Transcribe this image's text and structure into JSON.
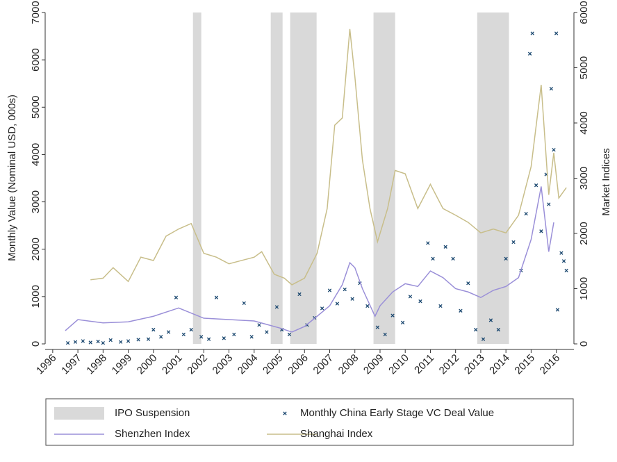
{
  "chart_data": {
    "type": "combo",
    "y_label": "Monthly Value (Nominal USD, 000s)",
    "y2_label": "Market Indices",
    "xlim": [
      1995.7,
      2016.7
    ],
    "xticks": [
      1996,
      1997,
      1998,
      1999,
      2000,
      2001,
      2002,
      2003,
      2004,
      2005,
      2006,
      2007,
      2008,
      2009,
      2010,
      2011,
      2012,
      2013,
      2014,
      2015,
      2016
    ],
    "ylim": [
      0,
      7000
    ],
    "yticks": [
      0,
      1000,
      2000,
      3000,
      4000,
      5000,
      6000,
      7000
    ],
    "y2lim": [
      0,
      6000
    ],
    "y2ticks": [
      0,
      1000,
      2000,
      3000,
      4000,
      5000,
      6000
    ],
    "series": [
      {
        "name": "IPO Suspension",
        "type": "shade",
        "color": "#d9d9d9",
        "periods": [
          [
            2001.57,
            2001.9
          ],
          [
            2004.66,
            2005.13
          ],
          [
            2005.43,
            2006.48
          ],
          [
            2008.74,
            2009.6
          ],
          [
            2012.86,
            2014.12
          ]
        ]
      },
      {
        "name": "Monthly China Early Stage VC Deal Value",
        "type": "scatter",
        "color": "#1a476f",
        "x": [
          1996.6,
          1996.9,
          1997.2,
          1997.5,
          1997.8,
          1998.0,
          1998.3,
          1998.7,
          1999.0,
          1999.4,
          1999.8,
          2000.0,
          2000.3,
          2000.6,
          2000.9,
          2001.2,
          2001.5,
          2001.9,
          2002.2,
          2002.5,
          2002.8,
          2003.2,
          2003.6,
          2003.9,
          2004.2,
          2004.5,
          2004.9,
          2005.1,
          2005.4,
          2005.8,
          2006.1,
          2006.4,
          2006.7,
          2007.0,
          2007.3,
          2007.6,
          2007.9,
          2008.2,
          2008.5,
          2008.9,
          2009.2,
          2009.5,
          2009.9,
          2010.2,
          2010.6,
          2010.9,
          2011.1,
          2011.4,
          2011.6,
          2011.9,
          2012.2,
          2012.5,
          2012.8,
          2013.1,
          2013.4,
          2013.7,
          2014.0,
          2014.3,
          2014.6,
          2014.8,
          2014.95,
          2015.05,
          2015.2,
          2015.4,
          2015.6,
          2015.7,
          2015.8,
          2015.9,
          2016.0,
          2016.05,
          2016.2,
          2016.3,
          2016.4
        ],
        "values": [
          20,
          40,
          60,
          30,
          50,
          20,
          80,
          40,
          60,
          90,
          100,
          300,
          150,
          250,
          980,
          200,
          300,
          150,
          100,
          980,
          120,
          200,
          860,
          150,
          400,
          250,
          780,
          300,
          200,
          1050,
          400,
          550,
          750,
          1130,
          850,
          1150,
          950,
          1280,
          800,
          350,
          200,
          600,
          450,
          1000,
          900,
          2130,
          1800,
          800,
          2050,
          1800,
          700,
          1280,
          300,
          100,
          500,
          300,
          1800,
          2150,
          1550,
          2750,
          6130,
          6560,
          3350,
          2380,
          3580,
          2950,
          5390,
          4100,
          6560,
          720,
          1920,
          1750,
          1550
        ]
      },
      {
        "name": "Shenzhen Index",
        "type": "line",
        "axis": "y2",
        "color": "#9a8fd8",
        "x": [
          1996.5,
          1997.0,
          1998.0,
          1999.0,
          2000.0,
          2001.0,
          2002.0,
          2003.0,
          2004.0,
          2005.0,
          2005.5,
          2006.0,
          2006.5,
          2007.0,
          2007.5,
          2007.8,
          2008.0,
          2008.3,
          2008.8,
          2009.0,
          2009.5,
          2010.0,
          2010.5,
          2011.0,
          2011.5,
          2012.0,
          2012.5,
          2013.0,
          2013.5,
          2014.0,
          2014.5,
          2015.0,
          2015.4,
          2015.7,
          2015.9
        ],
        "values": [
          240,
          440,
          380,
          400,
          500,
          650,
          465,
          440,
          415,
          290,
          215,
          315,
          500,
          690,
          1070,
          1470,
          1380,
          1000,
          500,
          690,
          940,
          1090,
          1040,
          1320,
          1200,
          1000,
          940,
          840,
          970,
          1040,
          1200,
          1890,
          2850,
          1670,
          2200
        ]
      },
      {
        "name": "Shanghai Index",
        "type": "line",
        "axis": "y2",
        "color": "#c8be8a",
        "x": [
          1997.5,
          1998.0,
          1998.4,
          1999.0,
          1999.5,
          2000.0,
          2000.5,
          2001.0,
          2001.5,
          2002.0,
          2002.5,
          2003.0,
          2003.5,
          2004.0,
          2004.3,
          2004.8,
          2005.2,
          2005.5,
          2006.0,
          2006.5,
          2006.9,
          2007.2,
          2007.5,
          2007.8,
          2008.0,
          2008.3,
          2008.6,
          2008.9,
          2009.3,
          2009.6,
          2010.0,
          2010.5,
          2011.0,
          2011.5,
          2012.0,
          2012.5,
          2013.0,
          2013.5,
          2014.0,
          2014.5,
          2015.0,
          2015.4,
          2015.7,
          2015.9,
          2016.1,
          2016.4
        ],
        "values": [
          1160,
          1190,
          1380,
          1130,
          1570,
          1510,
          1950,
          2080,
          2180,
          1640,
          1570,
          1450,
          1510,
          1570,
          1670,
          1260,
          1190,
          1070,
          1190,
          1640,
          2450,
          3960,
          4090,
          5700,
          4840,
          3330,
          2450,
          1850,
          2450,
          3140,
          3080,
          2450,
          2890,
          2450,
          2330,
          2200,
          2010,
          2080,
          2010,
          2330,
          3210,
          4690,
          2700,
          3460,
          2640,
          2830
        ]
      }
    ]
  }
}
